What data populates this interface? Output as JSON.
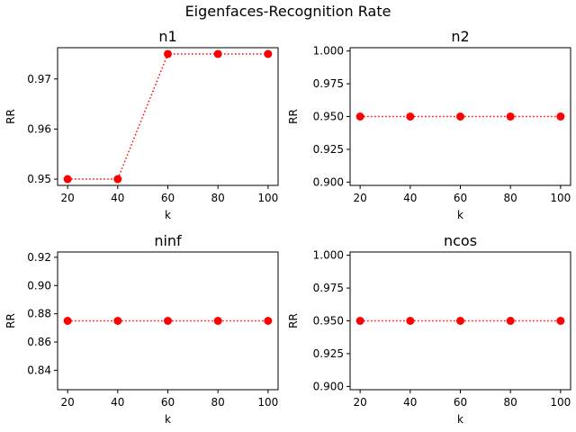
{
  "figure": {
    "title": "Eigenfaces-Recognition Rate"
  },
  "chart_data": [
    {
      "type": "line",
      "title": "n1",
      "xlabel": "k",
      "ylabel": "RR",
      "x": [
        20,
        40,
        60,
        80,
        100
      ],
      "series": [
        {
          "values": [
            0.95,
            0.95,
            0.975,
            0.975,
            0.975
          ]
        }
      ],
      "xlim": [
        16,
        104
      ],
      "ylim": [
        0.94875,
        0.97625
      ],
      "xticks": [
        20,
        40,
        60,
        80,
        100
      ],
      "xtick_labels": [
        "20",
        "40",
        "60",
        "80",
        "100"
      ],
      "yticks": [
        0.95,
        0.96,
        0.97
      ],
      "ytick_labels": [
        "0.95",
        "0.96",
        "0.97"
      ],
      "line_style": "dotted",
      "marker": "circle",
      "color": "#ff0000",
      "grid": false
    },
    {
      "type": "line",
      "title": "n2",
      "xlabel": "k",
      "ylabel": "RR",
      "x": [
        20,
        40,
        60,
        80,
        100
      ],
      "series": [
        {
          "values": [
            0.95,
            0.95,
            0.95,
            0.95,
            0.95
          ]
        }
      ],
      "xlim": [
        16,
        104
      ],
      "ylim": [
        0.8975,
        1.0025
      ],
      "xticks": [
        20,
        40,
        60,
        80,
        100
      ],
      "xtick_labels": [
        "20",
        "40",
        "60",
        "80",
        "100"
      ],
      "yticks": [
        0.9,
        0.925,
        0.95,
        0.975,
        1.0
      ],
      "ytick_labels": [
        "0.900",
        "0.925",
        "0.950",
        "0.975",
        "1.000"
      ],
      "line_style": "dotted",
      "marker": "circle",
      "color": "#ff0000",
      "grid": false
    },
    {
      "type": "line",
      "title": "ninf",
      "xlabel": "k",
      "ylabel": "RR",
      "x": [
        20,
        40,
        60,
        80,
        100
      ],
      "series": [
        {
          "values": [
            0.875,
            0.875,
            0.875,
            0.875,
            0.875
          ]
        }
      ],
      "xlim": [
        16,
        104
      ],
      "ylim": [
        0.82625,
        0.92375
      ],
      "xticks": [
        20,
        40,
        60,
        80,
        100
      ],
      "xtick_labels": [
        "20",
        "40",
        "60",
        "80",
        "100"
      ],
      "yticks": [
        0.84,
        0.86,
        0.88,
        0.9,
        0.92
      ],
      "ytick_labels": [
        "0.84",
        "0.86",
        "0.88",
        "0.90",
        "0.92"
      ],
      "line_style": "dotted",
      "marker": "circle",
      "color": "#ff0000",
      "grid": false
    },
    {
      "type": "line",
      "title": "ncos",
      "xlabel": "k",
      "ylabel": "RR",
      "x": [
        20,
        40,
        60,
        80,
        100
      ],
      "series": [
        {
          "values": [
            0.95,
            0.95,
            0.95,
            0.95,
            0.95
          ]
        }
      ],
      "xlim": [
        16,
        104
      ],
      "ylim": [
        0.8975,
        1.0025
      ],
      "xticks": [
        20,
        40,
        60,
        80,
        100
      ],
      "xtick_labels": [
        "20",
        "40",
        "60",
        "80",
        "100"
      ],
      "yticks": [
        0.9,
        0.925,
        0.95,
        0.975,
        1.0
      ],
      "ytick_labels": [
        "0.900",
        "0.925",
        "0.950",
        "0.975",
        "1.000"
      ],
      "line_style": "dotted",
      "marker": "circle",
      "color": "#ff0000",
      "grid": false
    }
  ]
}
